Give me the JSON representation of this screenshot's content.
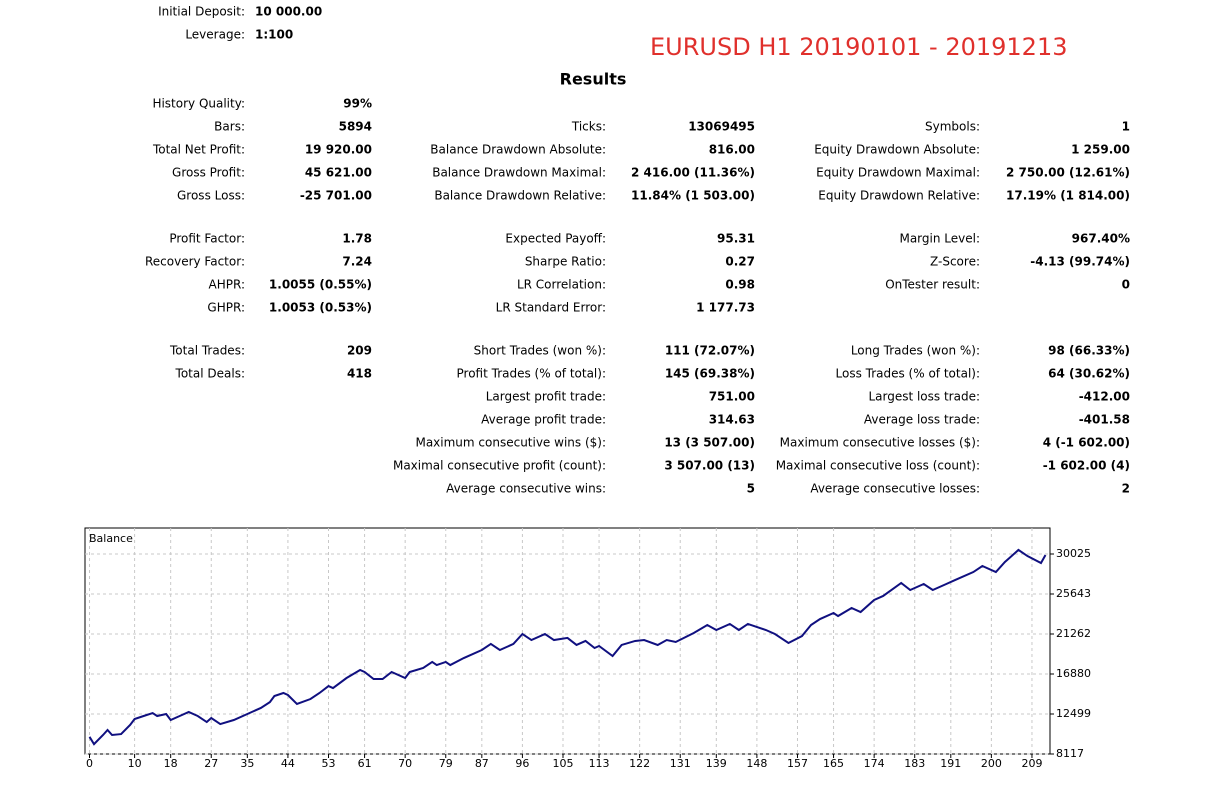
{
  "header": {
    "deposit": {
      "label": "Initial Deposit:",
      "value": "10 000.00"
    },
    "leverage": {
      "label": "Leverage:",
      "value": "1:100"
    }
  },
  "title": "EURUSD H1 20190101 - 20191213",
  "section_title": "Results",
  "groups": [
    [
      [
        {
          "label": "History Quality:",
          "value": "99%"
        },
        null,
        null
      ],
      [
        {
          "label": "Bars:",
          "value": "5894"
        },
        {
          "label": "Ticks:",
          "value": "13069495"
        },
        {
          "label": "Symbols:",
          "value": "1"
        }
      ],
      [
        {
          "label": "Total Net Profit:",
          "value": "19 920.00"
        },
        {
          "label": "Balance Drawdown Absolute:",
          "value": "816.00"
        },
        {
          "label": "Equity Drawdown Absolute:",
          "value": "1 259.00"
        }
      ],
      [
        {
          "label": "Gross Profit:",
          "value": "45 621.00"
        },
        {
          "label": "Balance Drawdown Maximal:",
          "value": "2 416.00 (11.36%)"
        },
        {
          "label": "Equity Drawdown Maximal:",
          "value": "2 750.00 (12.61%)"
        }
      ],
      [
        {
          "label": "Gross Loss:",
          "value": "-25 701.00"
        },
        {
          "label": "Balance Drawdown Relative:",
          "value": "11.84% (1 503.00)"
        },
        {
          "label": "Equity Drawdown Relative:",
          "value": "17.19% (1 814.00)"
        }
      ]
    ],
    [
      [
        {
          "label": "Profit Factor:",
          "value": "1.78"
        },
        {
          "label": "Expected Payoff:",
          "value": "95.31"
        },
        {
          "label": "Margin Level:",
          "value": "967.40%"
        }
      ],
      [
        {
          "label": "Recovery Factor:",
          "value": "7.24"
        },
        {
          "label": "Sharpe Ratio:",
          "value": "0.27"
        },
        {
          "label": "Z-Score:",
          "value": "-4.13 (99.74%)"
        }
      ],
      [
        {
          "label": "AHPR:",
          "value": "1.0055 (0.55%)"
        },
        {
          "label": "LR Correlation:",
          "value": "0.98"
        },
        {
          "label": "OnTester result:",
          "value": "0"
        }
      ],
      [
        {
          "label": "GHPR:",
          "value": "1.0053 (0.53%)"
        },
        {
          "label": "LR Standard Error:",
          "value": "1 177.73"
        },
        null
      ]
    ],
    [
      [
        {
          "label": "Total Trades:",
          "value": "209"
        },
        {
          "label": "Short Trades (won %):",
          "value": "111 (72.07%)"
        },
        {
          "label": "Long Trades (won %):",
          "value": "98 (66.33%)"
        }
      ],
      [
        {
          "label": "Total Deals:",
          "value": "418"
        },
        {
          "label": "Profit Trades (% of total):",
          "value": "145 (69.38%)"
        },
        {
          "label": "Loss Trades (% of total):",
          "value": "64 (30.62%)"
        }
      ],
      [
        null,
        {
          "label": "Largest profit trade:",
          "value": "751.00"
        },
        {
          "label": "Largest loss trade:",
          "value": "-412.00"
        }
      ],
      [
        null,
        {
          "label": "Average profit trade:",
          "value": "314.63"
        },
        {
          "label": "Average loss trade:",
          "value": "-401.58"
        }
      ],
      [
        null,
        {
          "label": "Maximum consecutive wins ($):",
          "value": "13 (3 507.00)"
        },
        {
          "label": "Maximum consecutive losses ($):",
          "value": "4 (-1 602.00)"
        }
      ],
      [
        null,
        {
          "label": "Maximal consecutive profit (count):",
          "value": "3 507.00 (13)"
        },
        {
          "label": "Maximal consecutive loss (count):",
          "value": "-1 602.00 (4)"
        }
      ],
      [
        null,
        {
          "label": "Average consecutive wins:",
          "value": "5"
        },
        {
          "label": "Average consecutive losses:",
          "value": "2"
        }
      ]
    ]
  ],
  "chart_data": {
    "type": "line",
    "title": "Balance",
    "x": [
      0,
      1,
      3,
      4,
      5,
      7,
      9,
      10,
      12,
      14,
      15,
      17,
      18,
      20,
      22,
      24,
      26,
      27,
      29,
      32,
      35,
      38,
      40,
      41,
      43,
      44,
      46,
      49,
      51,
      53,
      54,
      57,
      60,
      61,
      63,
      65,
      67,
      70,
      71,
      74,
      76,
      77,
      79,
      80,
      83,
      87,
      89,
      91,
      94,
      96,
      98,
      101,
      103,
      106,
      108,
      110,
      112,
      113,
      116,
      118,
      121,
      123,
      126,
      128,
      130,
      134,
      137,
      139,
      142,
      144,
      146,
      150,
      152,
      155,
      158,
      160,
      162,
      165,
      166,
      169,
      171,
      174,
      176,
      180,
      182,
      185,
      187,
      190,
      192,
      196,
      198,
      201,
      203,
      204,
      206,
      208,
      211,
      212
    ],
    "series": [
      {
        "name": "Balance",
        "color": "#101080",
        "values": [
          10000,
          9200,
          10200,
          10750,
          10200,
          10300,
          11300,
          11950,
          12280,
          12600,
          12280,
          12500,
          11840,
          12280,
          12720,
          12280,
          11620,
          12060,
          11400,
          11840,
          12500,
          13160,
          13800,
          14470,
          14800,
          14580,
          13600,
          14140,
          14800,
          15560,
          15340,
          16440,
          17320,
          17100,
          16330,
          16330,
          17100,
          16440,
          17100,
          17540,
          18200,
          17860,
          18200,
          17860,
          18630,
          19510,
          20170,
          19510,
          20170,
          21260,
          20600,
          21260,
          20600,
          20830,
          20060,
          20500,
          19730,
          19950,
          18850,
          20060,
          20500,
          20600,
          20060,
          20600,
          20390,
          21370,
          22250,
          21700,
          22360,
          21700,
          22360,
          21700,
          21260,
          20280,
          21040,
          22250,
          22900,
          23560,
          23230,
          24110,
          23670,
          24990,
          25430,
          26850,
          26080,
          26740,
          26080,
          26740,
          27180,
          28050,
          28710,
          28050,
          29150,
          29590,
          30470,
          29800,
          29040,
          29920
        ]
      }
    ],
    "xlim": [
      -1,
      213
    ],
    "ylim": [
      8117,
      32873
    ],
    "xticks": [
      0,
      10,
      18,
      27,
      35,
      44,
      53,
      61,
      70,
      79,
      87,
      96,
      105,
      113,
      122,
      131,
      139,
      148,
      157,
      165,
      174,
      183,
      191,
      200,
      209
    ],
    "yticks": [
      8117,
      12499,
      16880,
      21262,
      25643,
      30025
    ],
    "grid": true
  }
}
